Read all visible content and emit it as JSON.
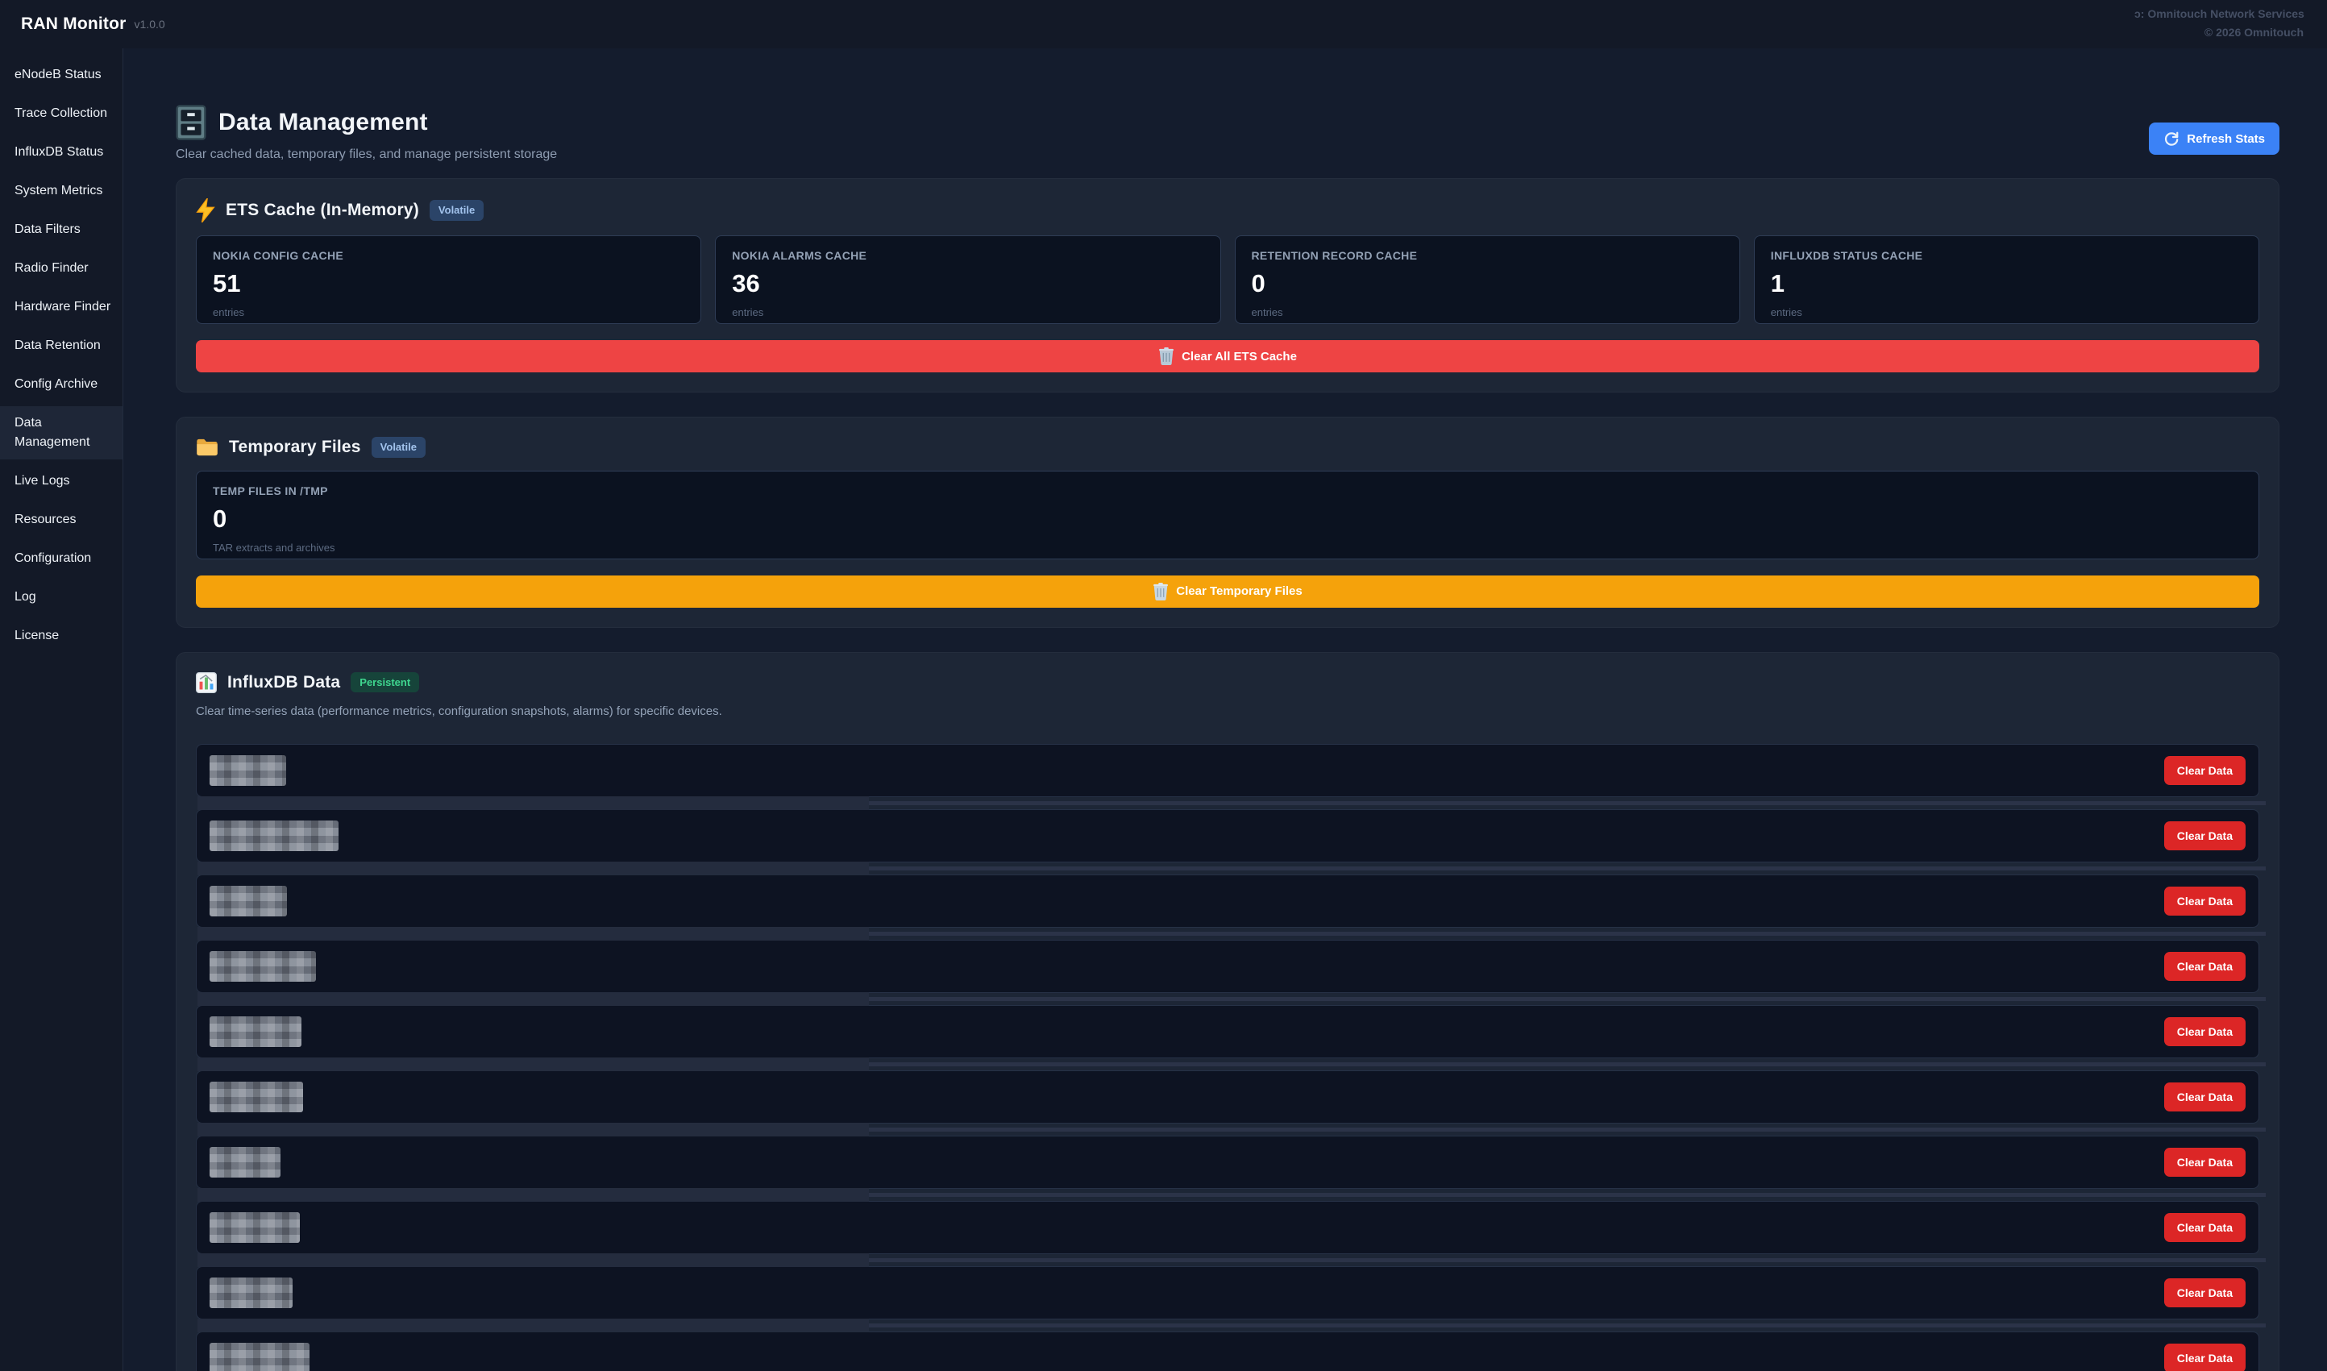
{
  "topbar": {
    "app_title": "RAN Monitor",
    "version": "v1.0.0",
    "credit_line1": "ɔ: Omnitouch Network Services",
    "credit_line2": "© 2026 Omnitouch"
  },
  "sidebar": {
    "items": [
      {
        "label": "eNodeB Status",
        "active": false
      },
      {
        "label": "Trace Collection",
        "active": false
      },
      {
        "label": "InfluxDB Status",
        "active": false
      },
      {
        "label": "System Metrics",
        "active": false
      },
      {
        "label": "Data Filters",
        "active": false
      },
      {
        "label": "Radio Finder",
        "active": false
      },
      {
        "label": "Hardware Finder",
        "active": false
      },
      {
        "label": "Data Retention",
        "active": false
      },
      {
        "label": "Config Archive",
        "active": false
      },
      {
        "label": "Data Management",
        "active": true
      },
      {
        "label": "Live Logs",
        "active": false
      },
      {
        "label": "Resources",
        "active": false
      },
      {
        "label": "Configuration",
        "active": false
      },
      {
        "label": "Log",
        "active": false
      },
      {
        "label": "License",
        "active": false
      }
    ]
  },
  "page": {
    "title": "Data Management",
    "subtitle": "Clear cached data, temporary files, and manage persistent storage",
    "refresh_button_label": "Refresh Stats"
  },
  "ets_cache": {
    "title": "ETS Cache (In-Memory)",
    "badge": "Volatile",
    "stats": [
      {
        "label": "NOKIA CONFIG CACHE",
        "value": "51",
        "unit": "entries"
      },
      {
        "label": "NOKIA ALARMS CACHE",
        "value": "36",
        "unit": "entries"
      },
      {
        "label": "RETENTION RECORD CACHE",
        "value": "0",
        "unit": "entries"
      },
      {
        "label": "INFLUXDB STATUS CACHE",
        "value": "1",
        "unit": "entries"
      }
    ],
    "clear_button_label": "Clear All ETS Cache"
  },
  "temp_files": {
    "title": "Temporary Files",
    "badge": "Volatile",
    "stat": {
      "label": "TEMP FILES IN /TMP",
      "value": "0",
      "unit": "TAR extracts and archives"
    },
    "clear_button_label": "Clear Temporary Files"
  },
  "influxdb": {
    "title": "InfluxDB Data",
    "badge": "Persistent",
    "description": "Clear time-series data (performance metrics, configuration snapshots, alarms) for specific devices.",
    "row_clear_button_label": "Clear Data",
    "rows": [
      {
        "redacted": true,
        "name_width": 95
      },
      {
        "redacted": true,
        "name_width": 160
      },
      {
        "redacted": true,
        "name_width": 96
      },
      {
        "redacted": true,
        "name_width": 132
      },
      {
        "redacted": true,
        "name_width": 114
      },
      {
        "redacted": true,
        "name_width": 116
      },
      {
        "redacted": true,
        "name_width": 88
      },
      {
        "redacted": true,
        "name_width": 112
      },
      {
        "redacted": true,
        "name_width": 103
      },
      {
        "redacted": true,
        "name_width": 124
      }
    ]
  },
  "colors": {
    "accent_blue": "#3b82f6",
    "danger_red": "#ee4444",
    "row_button_red": "#dc2626",
    "warning_orange": "#f5a20b",
    "volatile_badge_bg": "#2b4468",
    "persistent_badge_bg": "#16443a"
  }
}
